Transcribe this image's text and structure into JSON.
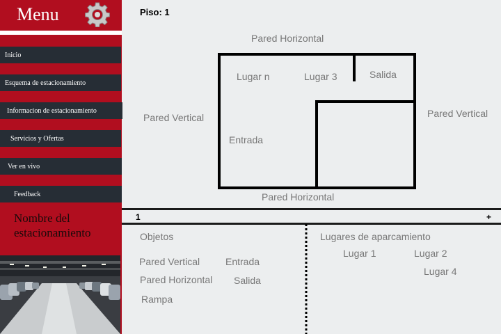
{
  "sidebar": {
    "menu_title": "Menu",
    "gear_icon": "gear-icon",
    "items": [
      {
        "label": "Inicio"
      },
      {
        "label": "Esquema de estacionamiento"
      },
      {
        "label": "Informacion de estacionamiento"
      },
      {
        "label": "Servicios y Ofertas"
      },
      {
        "label": "Ver en vivo"
      },
      {
        "label": "Feedback"
      }
    ],
    "lot_name": "Nombre del estacionamiento",
    "colors": {
      "accent": "#b10e1f",
      "nav_bg": "#262d35"
    }
  },
  "floor": {
    "title": "Piso: 1",
    "labels": {
      "wall_top": "Pared Horizontal",
      "wall_bottom": "Pared Horizontal",
      "wall_left": "Pared Vertical",
      "wall_right": "Pared Vertical",
      "spot_n": "Lugar n",
      "spot_3": "Lugar 3",
      "exit": "Salida",
      "entrance": "Entrada"
    }
  },
  "toolbar": {
    "page": "1",
    "add": "+"
  },
  "objects": {
    "heading": "Objetos",
    "items": [
      "Pared Vertical",
      "Entrada",
      "Pared Horizontal",
      "Salida",
      "Rampa"
    ]
  },
  "spots": {
    "heading": "Lugares de aparcamiento",
    "items": [
      "Lugar 1",
      "Lugar 2",
      "Lugar 4"
    ]
  }
}
